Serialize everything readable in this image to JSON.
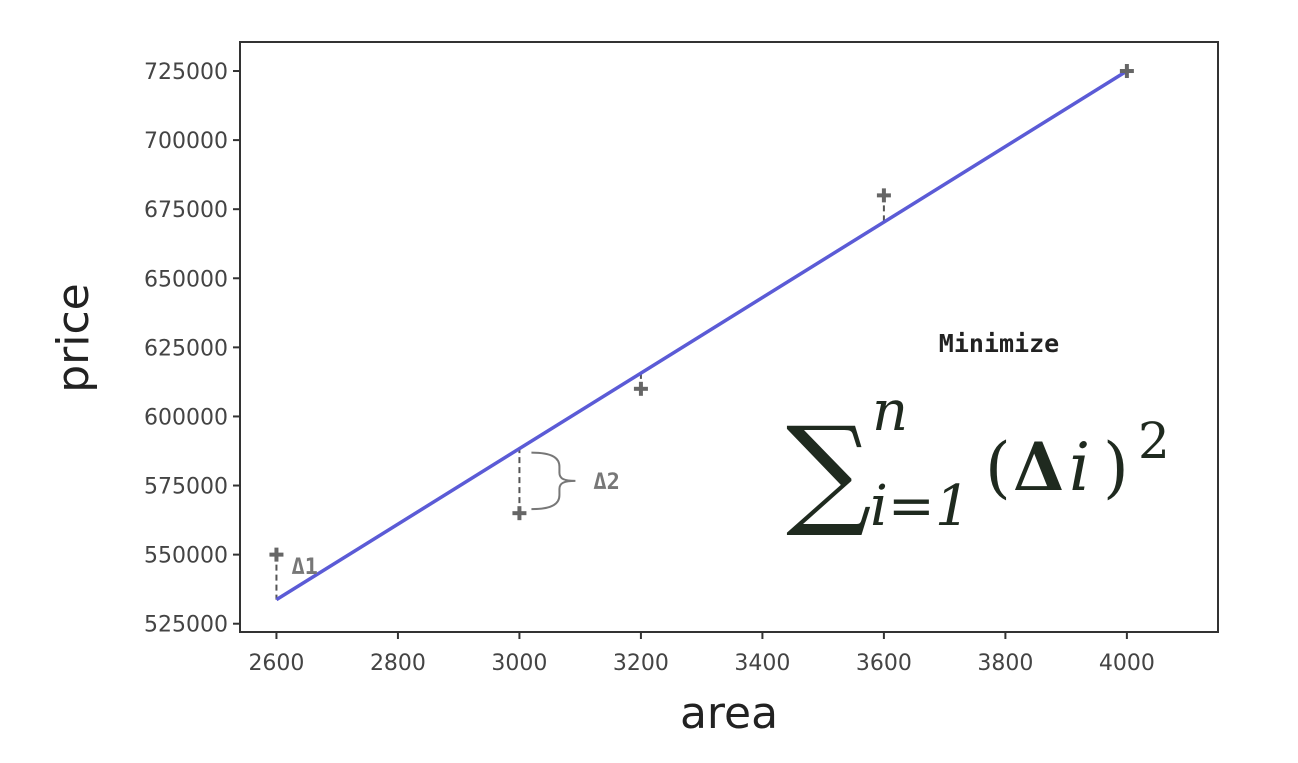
{
  "chart_data": {
    "type": "scatter",
    "xlabel": "area",
    "ylabel": "price",
    "xlim": [
      2540,
      4150
    ],
    "ylim": [
      522000,
      735500
    ],
    "x_ticks": [
      2600,
      2800,
      3000,
      3200,
      3400,
      3600,
      3800,
      4000
    ],
    "y_ticks": [
      525000,
      550000,
      575000,
      600000,
      625000,
      650000,
      675000,
      700000,
      725000
    ],
    "points": [
      {
        "x": 2600,
        "y": 550000
      },
      {
        "x": 3000,
        "y": 565000
      },
      {
        "x": 3200,
        "y": 610000
      },
      {
        "x": 3600,
        "y": 680000
      },
      {
        "x": 4000,
        "y": 725000
      }
    ],
    "fit_line": {
      "x": [
        2600,
        4000
      ],
      "y": [
        533700,
        725000
      ],
      "color": "#5b5bd6"
    },
    "point_color": "#666666",
    "residual_labels": [
      {
        "text": "Δ1",
        "point": 0
      },
      {
        "text": "Δ2",
        "point": 1
      }
    ],
    "annotation": {
      "title": "Minimize",
      "sum_symbol": "∑",
      "upper_limit": "n",
      "lower_limit": "i=1",
      "term_open": "(",
      "term_delta": "Δ",
      "term_i": "i",
      "term_close": ")",
      "exponent": "2"
    },
    "grid": false
  }
}
